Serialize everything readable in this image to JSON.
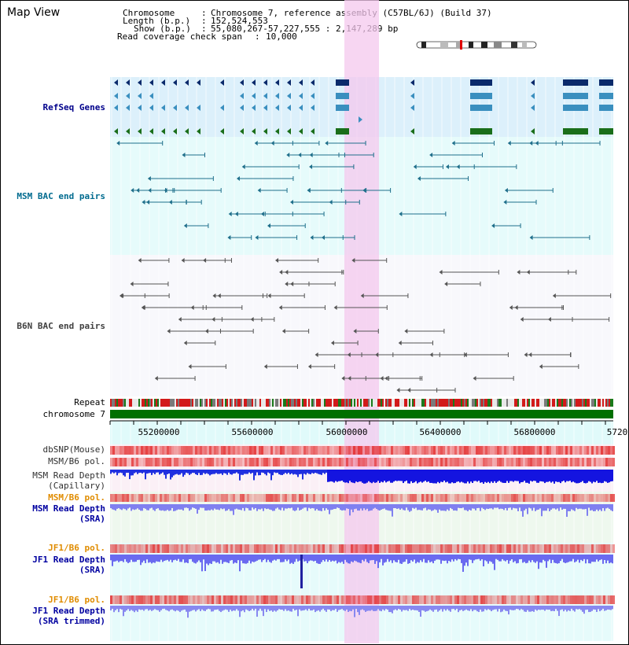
{
  "title": "Map View",
  "info": {
    "chromosome_key": "Chromosome",
    "chromosome_value": "Chromosome 7, reference assembly (C57BL/6J) (Build 37)",
    "length_key": "Length (b.p.)",
    "length_value": "152,524,553",
    "show_key": "Show (b.p.)",
    "show_value": "55,080,267-57,227,555 : 2,147,289 bp",
    "span_key": "Read coverage check span",
    "span_value": "10,000"
  },
  "tracks": {
    "refseq": "RefSeq Genes",
    "msm_bac": "MSM BAC end pairs",
    "b6n_bac": "B6N BAC end pairs",
    "repeat": "Repeat",
    "chromosome": "chromosome 7",
    "dbsnp": "dbSNP(Mouse)",
    "msm_b6_pol_1": "MSM/B6 pol.",
    "msm_depth_cap_1": "MSM Read Depth",
    "msm_depth_cap_2": "(Capillary)",
    "msm_b6_pol_2": "MSM/B6 pol.",
    "msm_depth_sra_1": "MSM Read Depth",
    "msm_depth_sra_2": "(SRA)",
    "jf1_b6_pol_1": "JF1/B6 pol.",
    "jf1_depth_sra_1": "JF1 Read Depth",
    "jf1_depth_sra_2": "(SRA)",
    "jf1_b6_pol_2": "JF1/B6 pol.",
    "jf1_depth_trim_1": "JF1 Read Depth",
    "jf1_depth_trim_2": "(SRA trimmed)"
  },
  "axis_ticks": [
    "55200000",
    "55600000",
    "56000000",
    "56400000",
    "56800000",
    "5720"
  ],
  "colors": {
    "refseq_label": "#00008b",
    "msm_bac_label": "#006b8f",
    "b6n_bac_label": "#404040",
    "pol_label_orange": "#e08c00",
    "depth_label": "#0000a0",
    "highlight": "#f6d2f0",
    "chromosome_bar": "#007000"
  }
}
